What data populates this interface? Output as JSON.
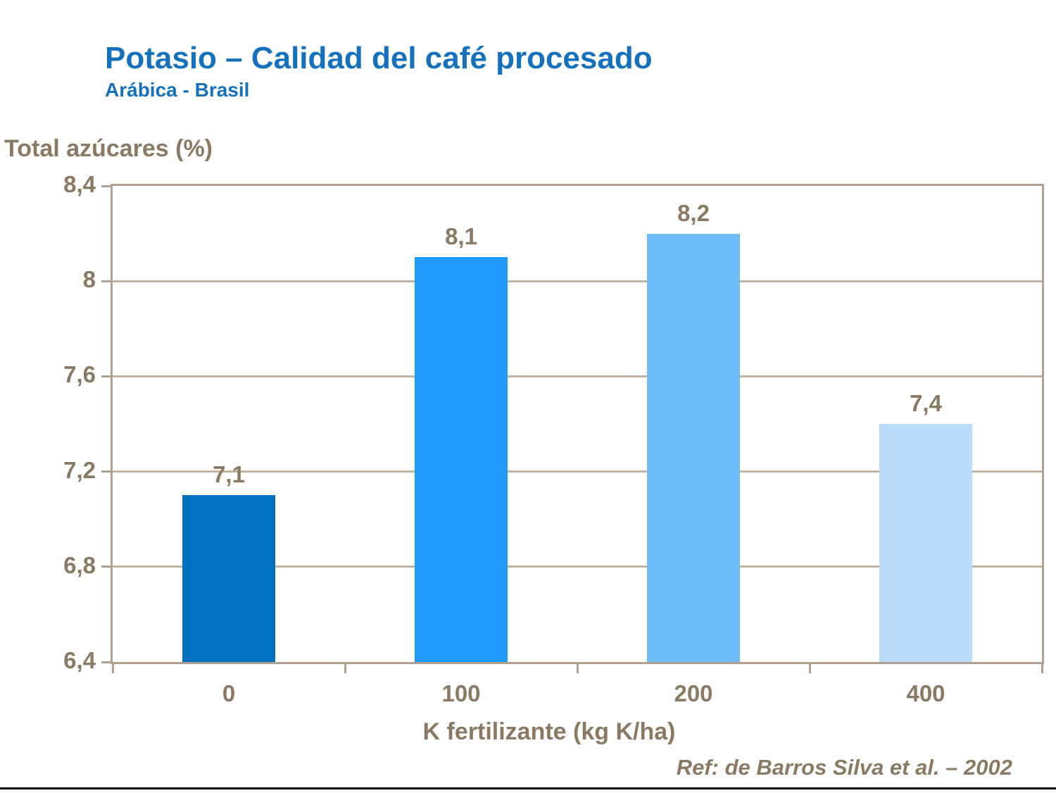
{
  "header": {
    "title": "Potasio – Calidad del café procesado",
    "subtitle": "Arábica - Brasil"
  },
  "reference": "Ref: de Barros Silva et al. – 2002",
  "chart_data": {
    "type": "bar",
    "title": "Potasio – Calidad del café procesado",
    "subtitle": "Arábica - Brasil",
    "ylabel": "Total azúcares (%)",
    "xlabel": "K fertilizante (kg K/ha)",
    "categories": [
      "0",
      "100",
      "200",
      "400"
    ],
    "values": [
      7.1,
      8.1,
      8.2,
      7.4
    ],
    "value_labels": [
      "7,1",
      "8,1",
      "8,2",
      "7,4"
    ],
    "ylim": [
      6.4,
      8.4
    ],
    "ytick_values": [
      8.4,
      8.0,
      7.6,
      7.2,
      6.8,
      6.4
    ],
    "ytick_labels": [
      "8,4",
      "8",
      "7,6",
      "7,2",
      "6,8",
      "6,4"
    ],
    "grid": true,
    "legend_position": "none",
    "bar_colors": [
      "#0070C0",
      "#1E9BFB",
      "#6DBDF9",
      "#BADCFA"
    ]
  },
  "colors": {
    "title_blue": "#1471BD",
    "text_brown": "#8A7963",
    "gridline_tan": "#C2B3A3",
    "frame_tan": "#AFA092",
    "footer_line_black": "#000000",
    "background": "#FFFFFF"
  }
}
